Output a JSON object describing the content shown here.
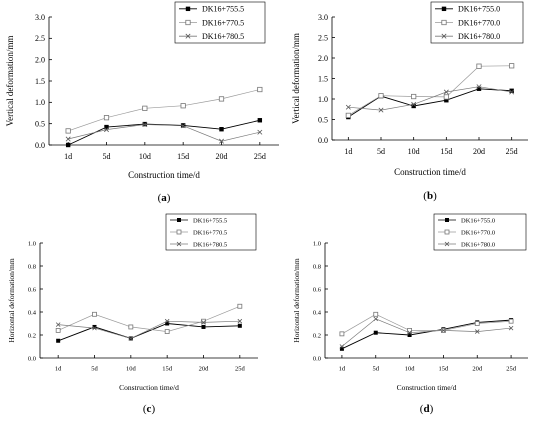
{
  "panels": [
    {
      "label": "(a)",
      "chart_data": {
        "type": "line",
        "categories": [
          "1d",
          "5d",
          "10d",
          "15d",
          "20d",
          "25d"
        ],
        "ylim": [
          0.0,
          3.0
        ],
        "yticks": [
          "0.0",
          "0.5",
          "1.0",
          "1.5",
          "2.0",
          "2.5",
          "3.0"
        ],
        "xlabel": "Construction time/d",
        "ylabel": "Vertical deformation/mm",
        "legend_position": "top-right",
        "series": [
          {
            "name": "DK16+755.5",
            "marker": "filled-square",
            "values": [
              0.0,
              0.42,
              0.49,
              0.46,
              0.37,
              0.58
            ]
          },
          {
            "name": "DK16+770.5",
            "marker": "open-square",
            "values": [
              0.33,
              0.64,
              0.86,
              0.92,
              1.08,
              1.3
            ]
          },
          {
            "name": "DK16+780.5",
            "marker": "cross",
            "values": [
              0.14,
              0.36,
              0.48,
              0.45,
              0.09,
              0.3
            ]
          }
        ]
      }
    },
    {
      "label": "(b)",
      "chart_data": {
        "type": "line",
        "categories": [
          "1d",
          "5d",
          "10d",
          "15d",
          "20d",
          "25d"
        ],
        "ylim": [
          0.0,
          3.0
        ],
        "yticks": [
          "0.0",
          "0.5",
          "1.0",
          "1.5",
          "2.0",
          "2.5",
          "3.0"
        ],
        "xlabel": "Construction time/d",
        "ylabel": "Vertical deformation/mm",
        "legend_position": "top-right",
        "series": [
          {
            "name": "DK16+755.0",
            "marker": "filled-square",
            "values": [
              0.56,
              1.07,
              0.83,
              0.97,
              1.25,
              1.2
            ]
          },
          {
            "name": "DK16+770.0",
            "marker": "open-square",
            "values": [
              0.6,
              1.08,
              1.06,
              1.05,
              1.8,
              1.81
            ]
          },
          {
            "name": "DK16+780.0",
            "marker": "cross",
            "values": [
              0.8,
              0.73,
              0.87,
              1.17,
              1.3,
              1.17
            ]
          }
        ]
      }
    },
    {
      "label": "(c)",
      "chart_data": {
        "type": "line",
        "categories": [
          "1d",
          "5d",
          "10d",
          "15d",
          "20d",
          "25d"
        ],
        "ylim": [
          0.0,
          1.0
        ],
        "yticks": [
          "0.0",
          "0.2",
          "0.4",
          "0.6",
          "0.8",
          "1.0"
        ],
        "xlabel": "Construction time/d",
        "ylabel": "Horizontal deformation/mm",
        "legend_position": "top-right",
        "series": [
          {
            "name": "DK16+755.5",
            "marker": "filled-square",
            "values": [
              0.15,
              0.27,
              0.17,
              0.3,
              0.27,
              0.28
            ]
          },
          {
            "name": "DK16+770.5",
            "marker": "open-square",
            "values": [
              0.24,
              0.38,
              0.27,
              0.23,
              0.32,
              0.45
            ]
          },
          {
            "name": "DK16+780.5",
            "marker": "cross",
            "values": [
              0.29,
              0.26,
              0.17,
              0.32,
              0.31,
              0.32
            ]
          }
        ]
      }
    },
    {
      "label": "(d)",
      "chart_data": {
        "type": "line",
        "categories": [
          "1d",
          "5d",
          "10d",
          "15d",
          "20d",
          "25d"
        ],
        "ylim": [
          0.0,
          1.0
        ],
        "yticks": [
          "0.0",
          "0.2",
          "0.4",
          "0.6",
          "0.8",
          "1.0"
        ],
        "xlabel": "Construction time/d",
        "ylabel": "Horizontal deformation/mm",
        "legend_position": "top-right",
        "series": [
          {
            "name": "DK16+755.0",
            "marker": "filled-square",
            "values": [
              0.08,
              0.22,
              0.2,
              0.25,
              0.31,
              0.33
            ]
          },
          {
            "name": "DK16+770.0",
            "marker": "open-square",
            "values": [
              0.21,
              0.38,
              0.24,
              0.24,
              0.3,
              0.32
            ]
          },
          {
            "name": "DK16+780.0",
            "marker": "cross",
            "values": [
              0.1,
              0.34,
              0.22,
              0.24,
              0.23,
              0.26
            ]
          }
        ]
      }
    }
  ]
}
